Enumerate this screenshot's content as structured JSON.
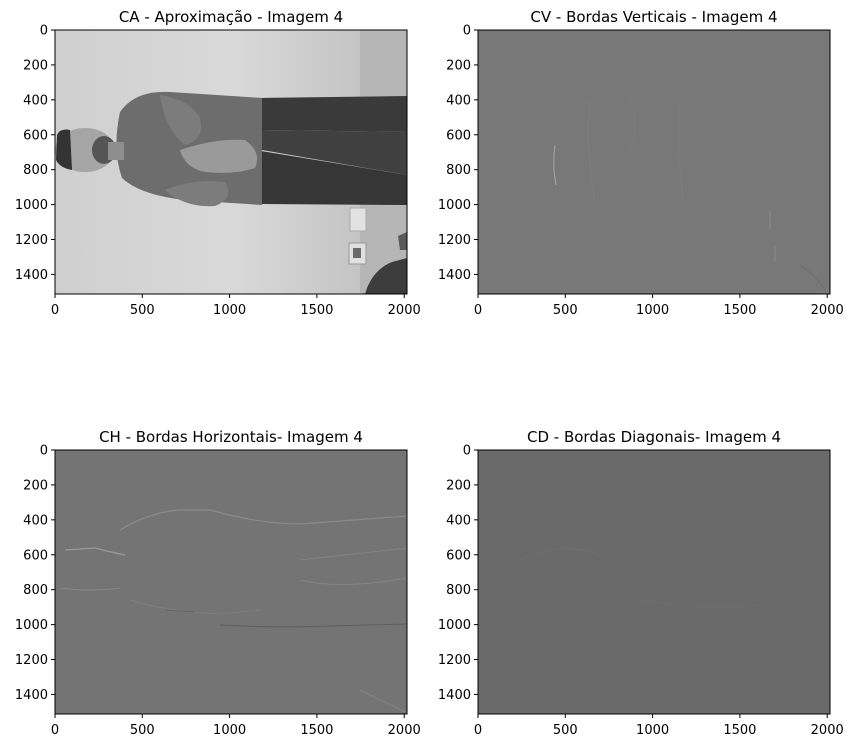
{
  "figure": {
    "panels": [
      {
        "title": "CA - Aproximação - Imagem 4",
        "image_content": "approximation-grayscale-photo",
        "background": "#8e8e8e"
      },
      {
        "title": "CV - Bordas Verticais - Imagem 4",
        "image_content": "vertical-edge-detail",
        "background": "#777777"
      },
      {
        "title": "CH - Bordas Horizontais- Imagem 4",
        "image_content": "horizontal-edge-detail",
        "background": "#747474"
      },
      {
        "title": "CD - Bordas Diagonais- Imagem 4",
        "image_content": "diagonal-edge-detail",
        "background": "#6a6a6a"
      }
    ]
  },
  "chart_data": [
    {
      "type": "heatmap",
      "title": "CA - Aproximação - Imagem 4",
      "xlim": [
        0,
        2016
      ],
      "ylim": [
        1512,
        0
      ],
      "xticks": [
        0,
        500,
        1000,
        1500,
        2000
      ],
      "yticks": [
        0,
        200,
        400,
        600,
        800,
        1000,
        1200,
        1400
      ],
      "colormap": "gray"
    },
    {
      "type": "heatmap",
      "title": "CV - Bordas Verticais - Imagem 4",
      "xlim": [
        0,
        2016
      ],
      "ylim": [
        1512,
        0
      ],
      "xticks": [
        0,
        500,
        1000,
        1500,
        2000
      ],
      "yticks": [
        0,
        200,
        400,
        600,
        800,
        1000,
        1200,
        1400
      ],
      "colormap": "gray"
    },
    {
      "type": "heatmap",
      "title": "CH - Bordas Horizontais- Imagem 4",
      "xlim": [
        0,
        2016
      ],
      "ylim": [
        1512,
        0
      ],
      "xticks": [
        0,
        500,
        1000,
        1500,
        2000
      ],
      "yticks": [
        0,
        200,
        400,
        600,
        800,
        1000,
        1200,
        1400
      ],
      "colormap": "gray"
    },
    {
      "type": "heatmap",
      "title": "CD - Bordas Diagonais- Imagem 4",
      "xlim": [
        0,
        2016
      ],
      "ylim": [
        1512,
        0
      ],
      "xticks": [
        0,
        500,
        1000,
        1500,
        2000
      ],
      "yticks": [
        0,
        200,
        400,
        600,
        800,
        1000,
        1200,
        1400
      ],
      "colormap": "gray"
    }
  ]
}
